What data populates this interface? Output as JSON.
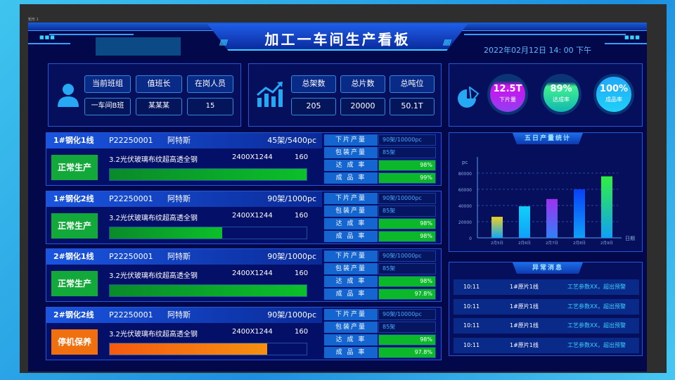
{
  "frame_label": "矩形 1",
  "header": {
    "title": "加工一车间生产看板",
    "datetime": "2022年02月12日   14: 00  下午"
  },
  "shift": {
    "labels": [
      "当前班组",
      "值班长",
      "在岗人员"
    ],
    "values": [
      "一车间B班",
      "某某某",
      "15"
    ]
  },
  "totals": {
    "labels": [
      "总架数",
      "总片数",
      "总吨位"
    ],
    "values": [
      "205",
      "20000",
      "50.1T"
    ]
  },
  "gauges": [
    {
      "value": "12.5T",
      "label": "下片量",
      "color": "#c020f0"
    },
    {
      "value": "89%",
      "label": "达成率",
      "color": "#30e090"
    },
    {
      "value": "100%",
      "label": "成品率",
      "color": "#20a8f8"
    }
  ],
  "lines": [
    {
      "name": "1#钢化1线",
      "order": "P22250001",
      "customer": "阿特斯",
      "count": "45架/5400pc",
      "status": "正常生产",
      "status_color": "#12a83a",
      "product": "3.2光伏玻璃布纹超高透全钢",
      "size": "2400X1244",
      "qty": "160",
      "progress": 100,
      "bar_color": "#0bb82a",
      "down": "90架/10000pc",
      "pack": "85架",
      "reach": "98%",
      "yield": "99%"
    },
    {
      "name": "1#钢化2线",
      "order": "P22250001",
      "customer": "阿特斯",
      "count": "90架/1000pc",
      "status": "正常生产",
      "status_color": "#12a83a",
      "product": "3.2光伏玻璃布纹超高透全钢",
      "size": "2400X1244",
      "qty": "160",
      "progress": 57,
      "bar_color": "#0bb82a",
      "down": "90架/10000pc",
      "pack": "85架",
      "reach": "98%",
      "yield": "98%"
    },
    {
      "name": "2#钢化1线",
      "order": "P22250001",
      "customer": "阿特斯",
      "count": "90架/1000pc",
      "status": "正常生产",
      "status_color": "#12a83a",
      "product": "3.2光伏玻璃布纹超高透全钢",
      "size": "2400X1244",
      "qty": "160",
      "progress": 100,
      "bar_color": "#0bb82a",
      "down": "90架/10000pc",
      "pack": "85架",
      "reach": "98%",
      "yield": "97.8%"
    },
    {
      "name": "2#钢化2线",
      "order": "P22250001",
      "customer": "阿特斯",
      "count": "90架/1000pc",
      "status": "停机保养",
      "status_color": "#f07010",
      "product": "3.2光伏玻璃布纹超高透全钢",
      "size": "2400X1244",
      "qty": "160",
      "progress": 80,
      "bar_color": "#f57a10",
      "down": "90架/10000pc",
      "pack": "85架",
      "reach": "98%",
      "yield": "97.8%"
    }
  ],
  "sub_labels": {
    "down": "下片产量",
    "pack": "包装产量",
    "reach": "达 成 率",
    "yield": "成 品 率"
  },
  "chart_data": {
    "type": "bar",
    "title": "五日产量统计",
    "ylabel": "pc",
    "xlabel": "日期",
    "categories": [
      "2月5日",
      "2月6日",
      "2月7日",
      "2月8日",
      "2月9日"
    ],
    "values": [
      26000,
      39000,
      48000,
      60000,
      76000
    ],
    "ylim": [
      0,
      80000
    ],
    "yticks": [
      "0",
      "20000",
      "40000",
      "60000",
      "80000"
    ],
    "grid": true,
    "colors": [
      [
        "#f0d020",
        "#10a8f8"
      ],
      [
        "#10d0f8",
        "#10a0f8"
      ],
      [
        "#a030f0",
        "#3080f8"
      ],
      [
        "#0840f8",
        "#10a0f8"
      ],
      [
        "#30f040",
        "#10a0f8"
      ]
    ]
  },
  "alerts": {
    "title": "异常消息",
    "items": [
      {
        "time": "10:11",
        "line": "1#原片1线",
        "msg": "工艺参数XX，超出预警"
      },
      {
        "time": "10:11",
        "line": "1#原片1线",
        "msg": "工艺参数XX，超出预警"
      },
      {
        "time": "10:11",
        "line": "1#原片1线",
        "msg": "工艺参数XX，超出预警"
      },
      {
        "time": "10:11",
        "line": "1#原片1线",
        "msg": "工艺参数XX，超出预警"
      }
    ]
  }
}
